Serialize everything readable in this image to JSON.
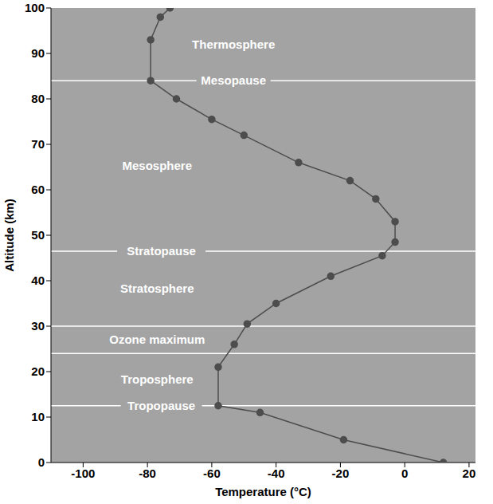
{
  "chart_data": {
    "type": "line",
    "x_label": "Temperature (°C)",
    "y_label": "Altitude (km)",
    "x": [
      12,
      -19,
      -45,
      -58,
      -58,
      -53,
      -49,
      -40,
      -23,
      -7,
      -3,
      -3,
      -9,
      -17,
      -33,
      -50,
      -60,
      -71,
      -79,
      -79,
      -76,
      -73
    ],
    "values": [
      0,
      5,
      11,
      12.5,
      21,
      26,
      30.5,
      35,
      41,
      45.5,
      48.5,
      53,
      58,
      62,
      66,
      72,
      75.5,
      80,
      84,
      93,
      98,
      100
    ],
    "color": "#4d4d4d",
    "marker": "circle",
    "line_style": "solid",
    "xlim": [
      -110,
      22
    ],
    "xticks": [
      -100,
      -80,
      -60,
      -40,
      -20,
      0,
      20
    ],
    "ylim": [
      0,
      100
    ],
    "yticks": [
      0,
      10,
      20,
      30,
      40,
      50,
      60,
      70,
      80,
      90,
      100
    ],
    "grid": false,
    "boundaries": [
      {
        "altitude": 84,
        "label": "Mesopause"
      },
      {
        "altitude": 46.5,
        "label": "Stratopause"
      },
      {
        "altitude": 30
      },
      {
        "altitude": 24
      },
      {
        "altitude": 12.5,
        "label": "Tropopause"
      }
    ],
    "layers": [
      "Thermosphere",
      "Mesosphere",
      "Stratosphere",
      "Ozone maximum",
      "Troposphere"
    ]
  }
}
